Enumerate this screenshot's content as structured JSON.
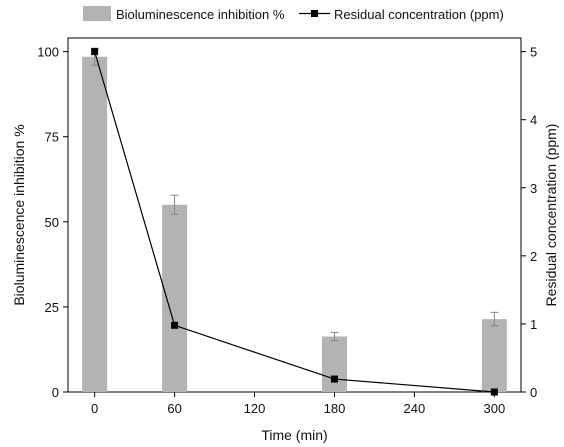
{
  "chart_data": {
    "type": "bar",
    "x_title": "Time (min)",
    "y_left_title": "Bioluminescence inhibition %",
    "y_right_title": "Residual concentration (ppm)",
    "x_ticks": [
      "0",
      "60",
      "120",
      "180",
      "240",
      "300"
    ],
    "y_left_ticks": [
      "0",
      "25",
      "50",
      "75",
      "100"
    ],
    "y_right_ticks": [
      "0",
      "1",
      "2",
      "3",
      "4",
      "5"
    ],
    "xlim": [
      -20,
      320
    ],
    "y_left_lim": [
      0,
      104
    ],
    "y_right_lim": [
      0,
      5.2
    ],
    "series": [
      {
        "name": "Bioluminescence inhibition %",
        "type": "bar",
        "axis": "left",
        "color": "#b3b3b3",
        "x": [
          0,
          60,
          180,
          300
        ],
        "values": [
          98.5,
          55,
          16.3,
          21.4
        ],
        "errors": [
          2.5,
          2.8,
          1.2,
          2.0
        ]
      },
      {
        "name": "Residual concentration (ppm)",
        "type": "line",
        "axis": "right",
        "color": "#000000",
        "x": [
          0,
          60,
          180,
          300
        ],
        "values": [
          5.0,
          0.98,
          0.19,
          0.0
        ]
      }
    ],
    "legend_position": "top",
    "grid": false
  }
}
